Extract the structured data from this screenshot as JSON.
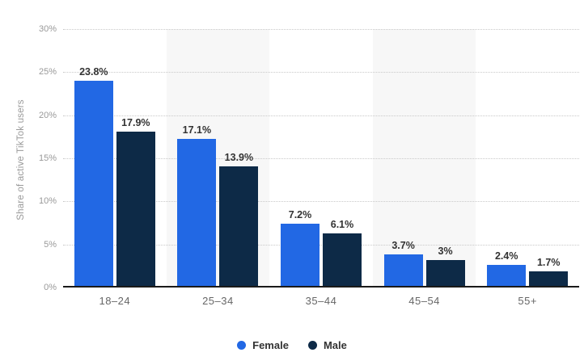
{
  "chart_data": {
    "type": "bar",
    "title": "",
    "ylabel": "Share of active TikTok users",
    "xlabel": "",
    "categories": [
      "18–24",
      "25–34",
      "35–44",
      "45–54",
      "55+"
    ],
    "series": [
      {
        "name": "Female",
        "color": "#2268e4",
        "values": [
          23.8,
          17.1,
          7.2,
          3.7,
          2.4
        ],
        "labels": [
          "23.8%",
          "17.1%",
          "7.2%",
          "3.7%",
          "2.4%"
        ]
      },
      {
        "name": "Male",
        "color": "#0d2a47",
        "values": [
          17.9,
          13.9,
          6.1,
          3.0,
          1.7
        ],
        "labels": [
          "17.9%",
          "13.9%",
          "6.1%",
          "3%",
          "1.7%"
        ]
      }
    ],
    "ylim": [
      0,
      30
    ],
    "y_tick_step": 5,
    "y_ticks": [
      "0%",
      "5%",
      "10%",
      "15%",
      "20%",
      "25%",
      "30%"
    ],
    "grid": "horizontal-dotted",
    "grid_color": "#c9c9c9",
    "stripe_color": "#f7f7f7",
    "striped_columns": [
      1,
      3
    ],
    "axis_line_color": "#1a1a1a",
    "legend_position": "bottom-center",
    "data_labels": true
  },
  "legend": {
    "items": [
      {
        "label": "Female",
        "color": "#2268e4"
      },
      {
        "label": "Male",
        "color": "#0d2a47"
      }
    ]
  }
}
